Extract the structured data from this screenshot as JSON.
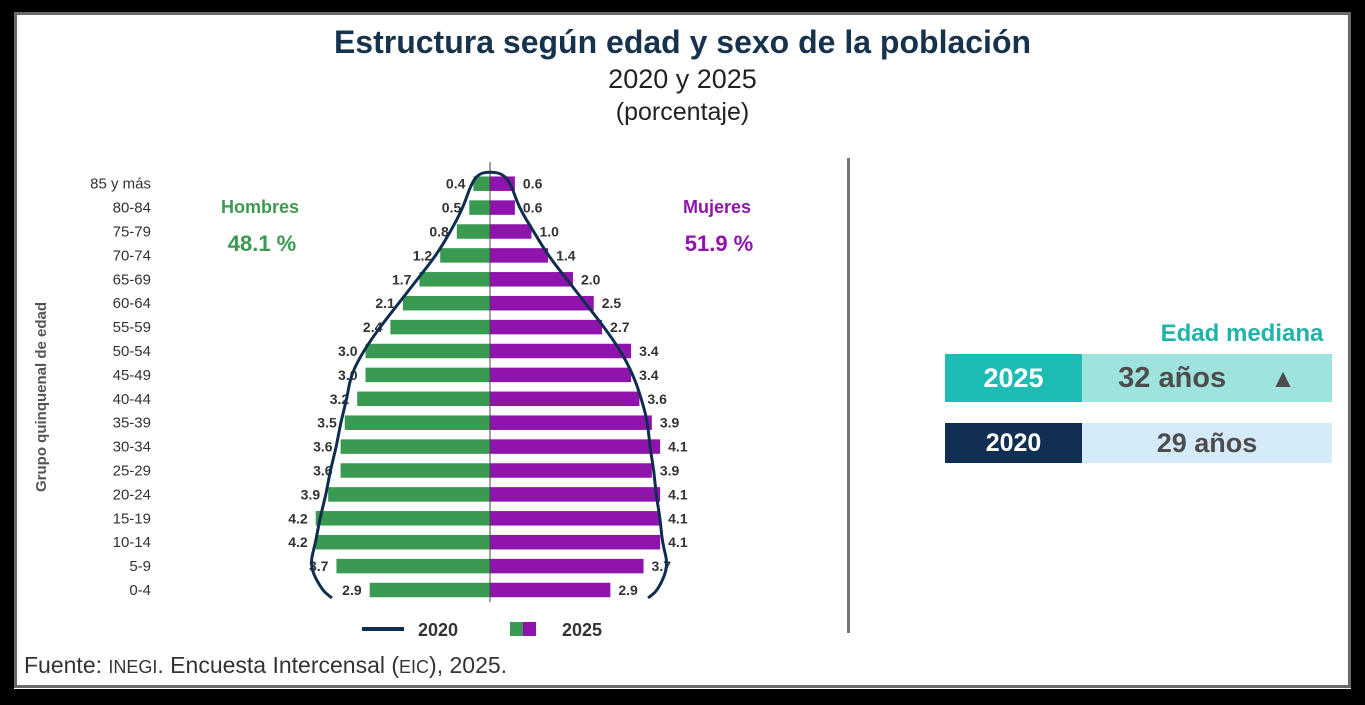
{
  "title": "Estructura según edad y sexo de la población",
  "subtitle": "2020 y 2025",
  "unit": "(porcentaje)",
  "chart_data": {
    "type": "bar",
    "orientation": "horizontal-population-pyramid",
    "y_axis_title": "Grupo quinquenal de edad",
    "categories": [
      "0-4",
      "5-9",
      "10-14",
      "15-19",
      "20-24",
      "25-29",
      "30-34",
      "35-39",
      "40-44",
      "45-49",
      "50-54",
      "55-59",
      "60-64",
      "65-69",
      "70-74",
      "75-79",
      "80-84",
      "85 y más"
    ],
    "series": [
      {
        "name": "Hombres",
        "year": "2025",
        "values": [
          2.9,
          3.7,
          4.2,
          4.2,
          3.9,
          3.6,
          3.6,
          3.5,
          3.2,
          3.0,
          3.0,
          2.4,
          2.1,
          1.7,
          1.2,
          0.8,
          0.5,
          0.4
        ]
      },
      {
        "name": "Mujeres",
        "year": "2025",
        "values": [
          2.9,
          3.7,
          4.1,
          4.1,
          4.1,
          3.9,
          4.1,
          3.9,
          3.6,
          3.4,
          3.4,
          2.7,
          2.5,
          2.0,
          1.4,
          1.0,
          0.6,
          0.6
        ]
      }
    ],
    "outline_2020": {
      "hombres": [
        4.05,
        4.35,
        4.2,
        4.1,
        3.95,
        3.85,
        3.7,
        3.6,
        3.45,
        3.35,
        3.05,
        2.65,
        2.2,
        1.75,
        1.3,
        0.95,
        0.65,
        0.45
      ],
      "mujeres": [
        4.05,
        4.3,
        4.15,
        4.1,
        4.0,
        3.95,
        3.85,
        3.8,
        3.65,
        3.45,
        3.15,
        2.75,
        2.3,
        1.85,
        1.4,
        1.05,
        0.7,
        0.5
      ]
    },
    "legend": [
      {
        "label": "2020",
        "marker": "line"
      },
      {
        "label": "2025",
        "marker": "bars"
      }
    ],
    "legend_position": "bottom",
    "colors": {
      "hombres": "#3a9a52",
      "mujeres": "#8e14ad",
      "outline_2020": "#0f2d4e"
    },
    "annotations": {
      "hombres_label": "Hombres",
      "hombres_pct": "48.1 %",
      "mujeres_label": "Mujeres",
      "mujeres_pct": "51.9 %"
    }
  },
  "median_panel": {
    "title": "Edad mediana",
    "rows": [
      {
        "year": "2025",
        "value": "32 años",
        "indicator": "▲"
      },
      {
        "year": "2020",
        "value": "29 años"
      }
    ]
  },
  "source": {
    "prefix": "Fuente: ",
    "org": "INEGI",
    "mid": ". Encuesta Intercensal (",
    "abbr": "EIC",
    "end": "), 2025."
  }
}
